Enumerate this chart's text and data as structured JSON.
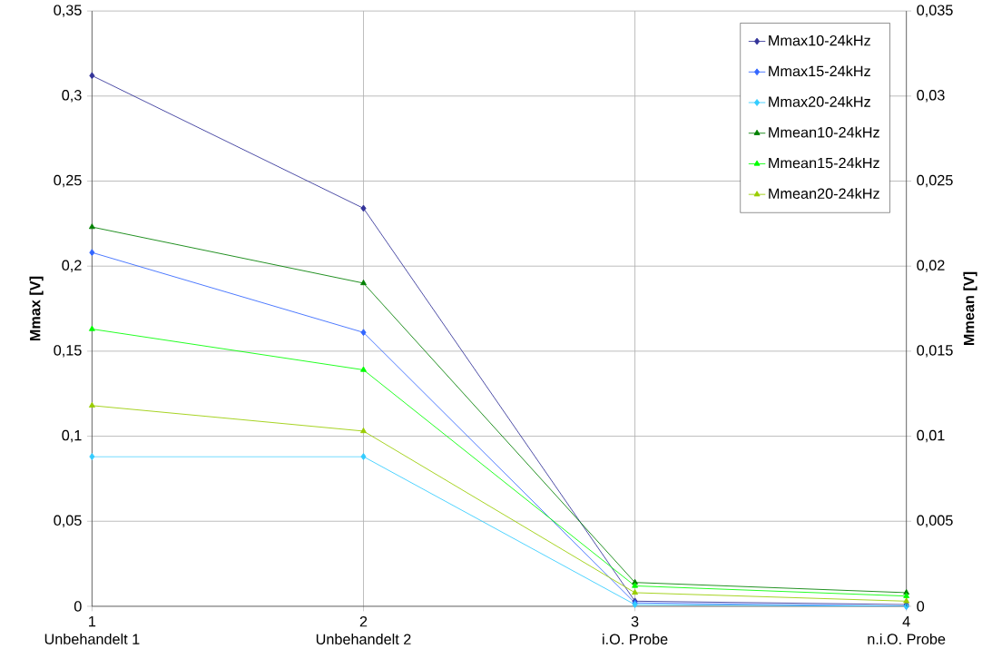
{
  "chart_data": {
    "type": "line",
    "ylabel": "Mmax [V]",
    "y2label": "Mmean [V]",
    "x": [
      1,
      2,
      3,
      4
    ],
    "xlim": [
      1,
      4
    ],
    "xticks": [
      1,
      2,
      3,
      4
    ],
    "annotations": [
      "Unbehandelt 1",
      "Unbehandelt 2",
      "i.O. Probe",
      "n.i.O. Probe"
    ],
    "ylim": [
      0,
      0.35
    ],
    "yticks": [
      {
        "value": 0,
        "label": "0"
      },
      {
        "value": 0.05,
        "label": "0,05"
      },
      {
        "value": 0.1,
        "label": "0,1"
      },
      {
        "value": 0.15,
        "label": "0,15"
      },
      {
        "value": 0.2,
        "label": "0,2"
      },
      {
        "value": 0.25,
        "label": "0,25"
      },
      {
        "value": 0.3,
        "label": "0,3"
      },
      {
        "value": 0.35,
        "label": "0,35"
      }
    ],
    "y2lim": [
      0,
      0.035
    ],
    "y2ticks": [
      {
        "value": 0,
        "label": "0"
      },
      {
        "value": 0.005,
        "label": "0,005"
      },
      {
        "value": 0.01,
        "label": "0,01"
      },
      {
        "value": 0.015,
        "label": "0,015"
      },
      {
        "value": 0.02,
        "label": "0,02"
      },
      {
        "value": 0.025,
        "label": "0,025"
      },
      {
        "value": 0.03,
        "label": "0,03"
      },
      {
        "value": 0.035,
        "label": "0,035"
      }
    ],
    "grid": true,
    "legend": "top right",
    "series": [
      {
        "name": "Mmax10-24kHz",
        "color": "#333399",
        "marker": "diamond",
        "values": [
          0.312,
          0.234,
          0.003,
          0.001
        ]
      },
      {
        "name": "Mmax15-24kHz",
        "color": "#3366ff",
        "marker": "diamond",
        "values": [
          0.208,
          0.161,
          0.002,
          0.0
        ]
      },
      {
        "name": "Mmax20-24kHz",
        "color": "#33ccff",
        "marker": "diamond",
        "values": [
          0.088,
          0.088,
          0.001,
          0.0
        ]
      },
      {
        "name": "Mmean10-24kHz",
        "color": "#008000",
        "marker": "triangle",
        "axis": "y2",
        "values": [
          0.0223,
          0.019,
          0.0014,
          0.0008
        ]
      },
      {
        "name": "Mmean15-24kHz",
        "color": "#00ff00",
        "marker": "triangle",
        "axis": "y2",
        "values": [
          0.0163,
          0.0139,
          0.0012,
          0.0006
        ]
      },
      {
        "name": "Mmean20-24kHz",
        "color": "#99cc00",
        "marker": "triangle",
        "axis": "y2",
        "values": [
          0.0118,
          0.0103,
          0.0008,
          0.0003
        ]
      }
    ]
  }
}
